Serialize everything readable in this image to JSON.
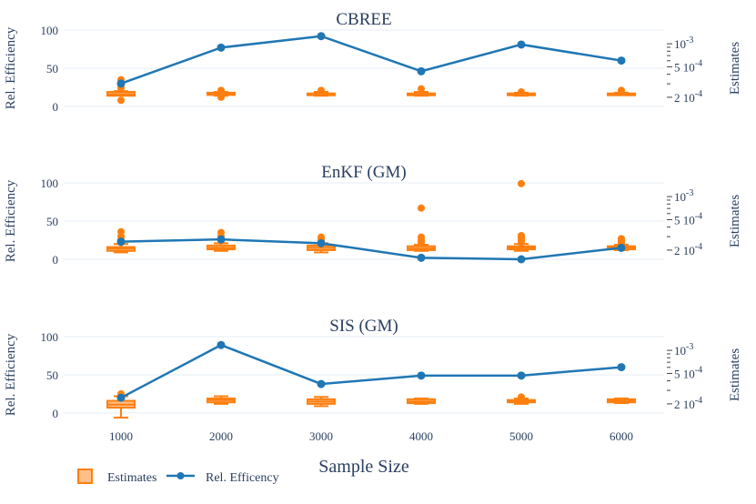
{
  "figure": {
    "xlabel": "Sample Size",
    "left_axis_label": "Rel. Efficiency",
    "right_axis_label": "Estimates",
    "x_ticks": [
      "1000",
      "2000",
      "3000",
      "4000",
      "5000",
      "6000"
    ],
    "left_ticks": [
      "0",
      "50",
      "100"
    ],
    "right_ticks": [
      "2 10^-4",
      "5 10^-4",
      "10^-3"
    ],
    "legend": {
      "estimates": "Estimates",
      "efficiency": "Rel. Efficency"
    }
  },
  "colors": {
    "line": "#1f77b4",
    "box": "#ff7f0e",
    "grid": "#e5ecf6",
    "text": "#2a3f5f"
  },
  "chart_data": [
    {
      "type": "line+box",
      "title": "CBREE",
      "x": [
        1000,
        2000,
        3000,
        4000,
        5000,
        6000
      ],
      "efficiency": [
        30,
        77,
        92,
        46,
        81,
        60
      ],
      "ylim": [
        0,
        100
      ],
      "boxes": [
        {
          "lower": 16,
          "q1": 14,
          "median": 16,
          "q3": 19,
          "upper": 20,
          "outliers": [
            8,
            24,
            28,
            35
          ]
        },
        {
          "lower": 14,
          "q1": 15,
          "median": 16,
          "q3": 18,
          "upper": 19,
          "outliers": [
            12,
            21
          ]
        },
        {
          "lower": 14,
          "q1": 15,
          "median": 16,
          "q3": 17,
          "upper": 19,
          "outliers": [
            21
          ]
        },
        {
          "lower": 14,
          "q1": 15,
          "median": 16,
          "q3": 17,
          "upper": 19,
          "outliers": [
            23
          ]
        },
        {
          "lower": 14,
          "q1": 15,
          "median": 16,
          "q3": 17,
          "upper": 18,
          "outliers": [
            19
          ]
        },
        {
          "lower": 15,
          "q1": 15,
          "median": 16,
          "q3": 17,
          "upper": 18,
          "outliers": [
            21
          ]
        }
      ]
    },
    {
      "type": "line+box",
      "title": "EnKF (GM)",
      "x": [
        1000,
        2000,
        3000,
        4000,
        5000,
        6000
      ],
      "efficiency": [
        23,
        26,
        21,
        2,
        0,
        15
      ],
      "ylim": [
        0,
        100
      ],
      "boxes": [
        {
          "lower": 9,
          "q1": 11,
          "median": 14,
          "q3": 16,
          "upper": 20,
          "outliers": [
            22,
            26,
            30,
            36
          ]
        },
        {
          "lower": 11,
          "q1": 13,
          "median": 15,
          "q3": 18,
          "upper": 21,
          "outliers": [
            25,
            30,
            35
          ]
        },
        {
          "lower": 9,
          "q1": 12,
          "median": 15,
          "q3": 18,
          "upper": 21,
          "outliers": [
            23,
            26,
            29
          ]
        },
        {
          "lower": 11,
          "q1": 12,
          "median": 14,
          "q3": 17,
          "upper": 19,
          "outliers": [
            22,
            25,
            29,
            67
          ]
        },
        {
          "lower": 11,
          "q1": 13,
          "median": 15,
          "q3": 17,
          "upper": 20,
          "outliers": [
            22,
            25,
            28,
            31,
            99
          ]
        },
        {
          "lower": 12,
          "q1": 13,
          "median": 15,
          "q3": 17,
          "upper": 19,
          "outliers": [
            21,
            24,
            27
          ]
        }
      ]
    },
    {
      "type": "line+box",
      "title": "SIS (GM)",
      "x": [
        1000,
        2000,
        3000,
        4000,
        5000,
        6000
      ],
      "efficiency": [
        20,
        89,
        38,
        49,
        49,
        60
      ],
      "ylim": [
        0,
        100
      ],
      "boxes": [
        {
          "lower": -6,
          "q1": 7,
          "median": 11,
          "q3": 16,
          "upper": 22,
          "outliers": [
            25
          ]
        },
        {
          "lower": 12,
          "q1": 14,
          "median": 17,
          "q3": 19,
          "upper": 22,
          "outliers": []
        },
        {
          "lower": 9,
          "q1": 12,
          "median": 15,
          "q3": 18,
          "upper": 21,
          "outliers": []
        },
        {
          "lower": 12,
          "q1": 13,
          "median": 15,
          "q3": 18,
          "upper": 19,
          "outliers": []
        },
        {
          "lower": 12,
          "q1": 14,
          "median": 15,
          "q3": 17,
          "upper": 19,
          "outliers": [
            21
          ]
        },
        {
          "lower": 13,
          "q1": 14,
          "median": 16,
          "q3": 18,
          "upper": 19,
          "outliers": []
        }
      ]
    }
  ]
}
